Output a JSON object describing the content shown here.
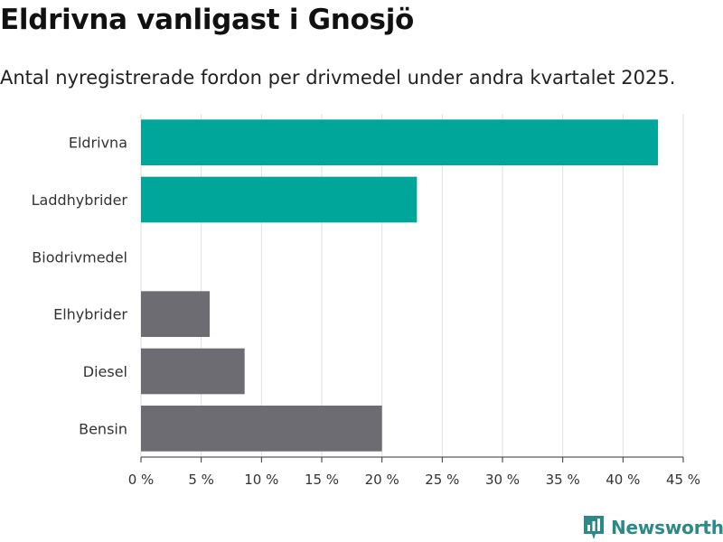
{
  "header": {
    "title": "Eldrivna vanligast i Gnosjö",
    "subtitle": "Antal nyregistrerade fordon per drivmedel under andra kvartalet 2025."
  },
  "chart_data": {
    "type": "bar",
    "orientation": "horizontal",
    "categories": [
      "Eldrivna",
      "Laddhybrider",
      "Biodrivmedel",
      "Elhybrider",
      "Diesel",
      "Bensin"
    ],
    "values": [
      42.9,
      22.9,
      0,
      5.7,
      8.6,
      20.0
    ],
    "colors": [
      "#00a699",
      "#00a699",
      "#00a699",
      "#6d6c72",
      "#6d6c72",
      "#6d6c72"
    ],
    "xlim": [
      0,
      45
    ],
    "xticks": [
      0,
      5,
      10,
      15,
      20,
      25,
      30,
      35,
      40,
      45
    ],
    "tick_labels": [
      "0 %",
      "5 %",
      "10 %",
      "15 %",
      "20 %",
      "25 %",
      "30 %",
      "35 %",
      "40 %",
      "45 %"
    ],
    "xlabel": "",
    "ylabel": "",
    "grid": true,
    "legend": "none"
  },
  "branding": {
    "name": "Newsworthy",
    "logo_icon": "newsworthy-logo-icon",
    "color": "#2b8a85"
  }
}
